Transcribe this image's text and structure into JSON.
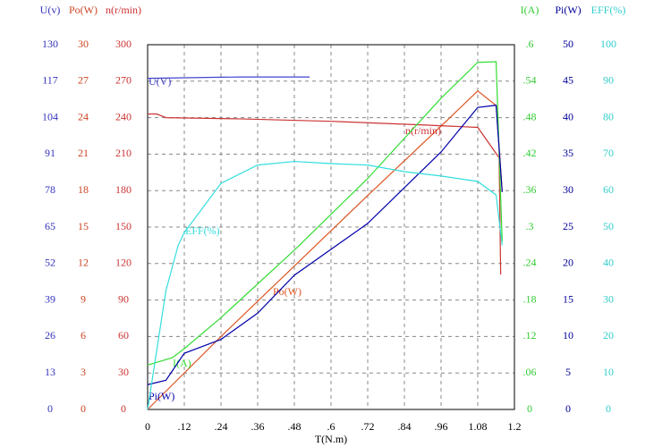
{
  "chart_data": {
    "type": "line",
    "x_label": "T(N.m)",
    "xlim": [
      0,
      1.2
    ],
    "xticks": [
      0,
      {
        "value": 0.12,
        "label": ".12"
      },
      {
        "value": 0.24,
        "label": ".24"
      },
      {
        "value": 0.36,
        "label": ".36"
      },
      {
        "value": 0.48,
        "label": ".48"
      },
      {
        "value": 0.6,
        "label": ".6"
      },
      {
        "value": 0.72,
        "label": ".72"
      },
      {
        "value": 0.84,
        "label": ".84"
      },
      {
        "value": 0.96,
        "label": ".96"
      },
      {
        "value": 1.08,
        "label": "1.08"
      },
      1.2
    ],
    "grid": true,
    "axes": [
      {
        "title": "U(v)",
        "color": "#3333bb",
        "ylim": [
          0,
          130
        ],
        "yticks": [
          0,
          13,
          26,
          39,
          52,
          65,
          78,
          91,
          104,
          117,
          130
        ],
        "series": {
          "name": "U(V)",
          "color": "#4444cc",
          "x": [
            0,
            0.3,
            0.53
          ],
          "values": [
            118,
            118.5,
            118.5
          ]
        }
      },
      {
        "title": "Po(W)",
        "color": "#cc4422",
        "ylim": [
          0,
          30
        ],
        "yticks": [
          0,
          3,
          6,
          9,
          12,
          15,
          18,
          21,
          24,
          27,
          30
        ],
        "series": {
          "name": "Po(W)",
          "color": "#dd5522",
          "x": [
            0,
            0.24,
            0.48,
            0.72,
            0.96,
            1.08,
            1.14,
            1.16
          ],
          "values": [
            0,
            6,
            11.8,
            17.6,
            23.3,
            26.2,
            25,
            18
          ]
        }
      },
      {
        "title": "n(r/min)",
        "color": "#cc3333",
        "ylim": [
          0,
          300
        ],
        "yticks": [
          0,
          30,
          60,
          90,
          120,
          150,
          180,
          210,
          240,
          270,
          300
        ],
        "series": {
          "name": "n(r/min)",
          "color": "#cc3333",
          "x": [
            0,
            0.03,
            0.06,
            0.3,
            0.6,
            0.9,
            1.08,
            1.15,
            1.155
          ],
          "values": [
            243,
            243,
            240,
            239,
            237,
            234,
            232,
            207,
            111
          ]
        }
      },
      {
        "title": "I(A)",
        "color": "#33cc33",
        "ylim": [
          0,
          0.6
        ],
        "yticks": [
          0,
          {
            "value": 0.06,
            "label": ".06"
          },
          {
            "value": 0.12,
            "label": ".12"
          },
          {
            "value": 0.18,
            "label": ".18"
          },
          {
            "value": 0.24,
            "label": ".24"
          },
          {
            "value": 0.3,
            "label": ".3"
          },
          {
            "value": 0.36,
            "label": ".36"
          },
          {
            "value": 0.42,
            "label": ".42"
          },
          {
            "value": 0.48,
            "label": ".48"
          },
          {
            "value": 0.54,
            "label": ".54"
          },
          {
            "value": 0.6,
            "label": ".6"
          }
        ],
        "series": {
          "name": "I(A)",
          "color": "#33dd33",
          "x": [
            0,
            0.08,
            0.12,
            0.24,
            0.48,
            0.72,
            0.96,
            1.08,
            1.14,
            1.16
          ],
          "values": [
            0.073,
            0.085,
            0.1,
            0.151,
            0.262,
            0.38,
            0.512,
            0.571,
            0.572,
            0.276
          ]
        }
      },
      {
        "title": "Pi(W)",
        "color": "#000099",
        "ylim": [
          0,
          50
        ],
        "yticks": [
          0,
          5,
          10,
          15,
          20,
          25,
          30,
          35,
          40,
          45,
          50
        ],
        "series": {
          "name": "Pi(W)",
          "color": "#0000aa",
          "x": [
            0,
            0.06,
            0.12,
            0.24,
            0.36,
            0.48,
            0.72,
            0.96,
            1.08,
            1.14,
            1.16
          ],
          "values": [
            3.4,
            4,
            7.7,
            9.6,
            13.2,
            18.4,
            25.5,
            35.3,
            41.4,
            41.7,
            29.8
          ]
        }
      },
      {
        "title": "EFF(%)",
        "color": "#33cccc",
        "ylim": [
          0,
          100
        ],
        "yticks": [
          0,
          10,
          20,
          30,
          40,
          50,
          60,
          70,
          80,
          90,
          100
        ],
        "series": {
          "name": "EFF(%)",
          "color": "#33dddd",
          "x": [
            0,
            0.06,
            0.1,
            0.12,
            0.24,
            0.36,
            0.48,
            0.6,
            0.72,
            0.84,
            0.96,
            1.08,
            1.14,
            1.16
          ],
          "values": [
            0,
            32.6,
            45,
            48.5,
            62,
            67,
            68,
            67.4,
            67,
            65.2,
            64,
            62.5,
            58.8,
            45
          ]
        }
      }
    ]
  }
}
